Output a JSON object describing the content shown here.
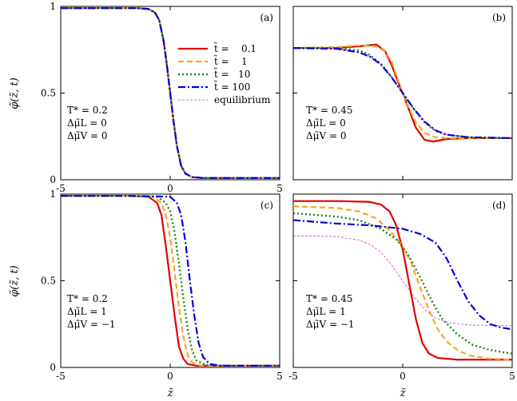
{
  "figure": {
    "ylabel": "φ̃(z̃, t)",
    "xlabel": "z̃",
    "legend": {
      "placement": "top-right of panel (a)",
      "entries": [
        {
          "name": "t̃ =    0.1",
          "color": "#e00000",
          "dash": "solid"
        },
        {
          "name": "t̃ =    1",
          "color": "#f5a623",
          "dash": "dashed"
        },
        {
          "name": "t̃ =   10",
          "color": "#1a8a1a",
          "dash": "dotted"
        },
        {
          "name": "t̃ = 100",
          "color": "#0000dd",
          "dash": "dashdot"
        },
        {
          "name": "equilibrium",
          "color": "#c040c0",
          "dash": "fine-dashed"
        }
      ]
    }
  },
  "chart_data": [
    {
      "panel": "(a)",
      "type": "line",
      "params": [
        "T* = 0.2",
        "Δμ̃L = 0",
        "Δμ̃V = 0"
      ],
      "xlim": [
        -5,
        5
      ],
      "ylim": [
        0,
        1
      ],
      "xticks": [
        "-5",
        "0",
        "5"
      ],
      "yticks": [
        "0",
        "0.5",
        "1"
      ],
      "xtick_values": [
        -5,
        0,
        5
      ],
      "ytick_values": [
        0,
        0.5,
        1
      ],
      "series": [
        {
          "name": "t̃ = 0.1",
          "x": [
            -5,
            -3,
            -1.5,
            -1,
            -0.7,
            -0.5,
            -0.3,
            -0.15,
            0,
            0.15,
            0.3,
            0.5,
            0.7,
            1,
            1.5,
            3,
            5
          ],
          "y": [
            0.99,
            0.99,
            0.99,
            0.985,
            0.965,
            0.92,
            0.8,
            0.66,
            0.5,
            0.34,
            0.2,
            0.08,
            0.035,
            0.015,
            0.01,
            0.01,
            0.01
          ]
        },
        {
          "name": "t̃ = 1",
          "x": [
            -5,
            -3,
            -1.5,
            -1,
            -0.7,
            -0.5,
            -0.3,
            -0.15,
            0,
            0.15,
            0.3,
            0.5,
            0.7,
            1,
            1.5,
            3,
            5
          ],
          "y": [
            0.99,
            0.99,
            0.99,
            0.985,
            0.965,
            0.92,
            0.8,
            0.66,
            0.5,
            0.34,
            0.2,
            0.08,
            0.035,
            0.015,
            0.01,
            0.01,
            0.01
          ]
        },
        {
          "name": "t̃ = 10",
          "x": [
            -5,
            -3,
            -1.5,
            -1,
            -0.7,
            -0.5,
            -0.3,
            -0.15,
            0,
            0.15,
            0.3,
            0.5,
            0.7,
            1,
            1.5,
            3,
            5
          ],
          "y": [
            0.99,
            0.99,
            0.99,
            0.985,
            0.965,
            0.92,
            0.8,
            0.66,
            0.5,
            0.34,
            0.2,
            0.08,
            0.035,
            0.015,
            0.01,
            0.01,
            0.01
          ]
        },
        {
          "name": "t̃ = 100",
          "x": [
            -5,
            -3,
            -1.5,
            -1,
            -0.7,
            -0.5,
            -0.3,
            -0.15,
            0,
            0.15,
            0.3,
            0.5,
            0.7,
            1,
            1.5,
            3,
            5
          ],
          "y": [
            0.99,
            0.99,
            0.99,
            0.985,
            0.965,
            0.92,
            0.8,
            0.66,
            0.5,
            0.34,
            0.2,
            0.08,
            0.035,
            0.015,
            0.01,
            0.01,
            0.01
          ]
        },
        {
          "name": "equilibrium",
          "x": [
            -5,
            -3,
            -1.5,
            -1,
            -0.7,
            -0.5,
            -0.3,
            -0.15,
            0,
            0.15,
            0.3,
            0.5,
            0.7,
            1,
            1.5,
            3,
            5
          ],
          "y": [
            0.99,
            0.99,
            0.99,
            0.985,
            0.965,
            0.92,
            0.8,
            0.66,
            0.5,
            0.34,
            0.2,
            0.08,
            0.035,
            0.015,
            0.01,
            0.01,
            0.01
          ]
        }
      ]
    },
    {
      "panel": "(b)",
      "type": "line",
      "params": [
        "T* = 0.45",
        "Δμ̃L = 0",
        "Δμ̃V = 0"
      ],
      "xlim": [
        -5,
        5
      ],
      "ylim": [
        0,
        1
      ],
      "xticks": [],
      "yticks": [],
      "xtick_values": [
        -5,
        0,
        5
      ],
      "ytick_values": [
        0,
        0.5,
        1
      ],
      "series": [
        {
          "name": "t̃ = 0.1",
          "x": [
            -5,
            -3,
            -2,
            -1.2,
            -0.8,
            -0.5,
            -0.2,
            0,
            0.3,
            0.6,
            1,
            1.4,
            2,
            3,
            5
          ],
          "y": [
            0.76,
            0.76,
            0.77,
            0.78,
            0.74,
            0.66,
            0.56,
            0.5,
            0.4,
            0.3,
            0.23,
            0.22,
            0.235,
            0.24,
            0.24
          ]
        },
        {
          "name": "t̃ = 1",
          "x": [
            -5,
            -3,
            -2,
            -1.2,
            -0.8,
            -0.5,
            -0.2,
            0,
            0.3,
            0.6,
            1,
            1.5,
            2,
            3,
            5
          ],
          "y": [
            0.76,
            0.765,
            0.775,
            0.77,
            0.74,
            0.68,
            0.57,
            0.5,
            0.41,
            0.33,
            0.27,
            0.245,
            0.24,
            0.24,
            0.24
          ]
        },
        {
          "name": "t̃ = 10",
          "x": [
            -5,
            -3,
            -2,
            -1.5,
            -1,
            -0.5,
            0,
            0.5,
            1,
            1.5,
            2,
            3,
            5
          ],
          "y": [
            0.76,
            0.76,
            0.745,
            0.72,
            0.67,
            0.59,
            0.5,
            0.41,
            0.33,
            0.28,
            0.26,
            0.245,
            0.24
          ]
        },
        {
          "name": "t̃ = 100",
          "x": [
            -5,
            -3,
            -2,
            -1.5,
            -1,
            -0.5,
            0,
            0.5,
            1,
            1.5,
            2,
            3,
            5
          ],
          "y": [
            0.76,
            0.755,
            0.735,
            0.71,
            0.665,
            0.59,
            0.5,
            0.41,
            0.335,
            0.285,
            0.26,
            0.245,
            0.24
          ]
        },
        {
          "name": "equilibrium",
          "x": [
            -5,
            -3,
            -2,
            -1.5,
            -1,
            -0.5,
            0,
            0.5,
            1,
            1.5,
            2,
            3,
            5
          ],
          "y": [
            0.76,
            0.755,
            0.735,
            0.71,
            0.665,
            0.59,
            0.5,
            0.41,
            0.335,
            0.285,
            0.26,
            0.245,
            0.24
          ]
        }
      ]
    },
    {
      "panel": "(c)",
      "type": "line",
      "params": [
        "T* = 0.2",
        "Δμ̃L =   1",
        "Δμ̃V = −1"
      ],
      "xlim": [
        -5,
        5
      ],
      "ylim": [
        0,
        1
      ],
      "xticks": [
        "-5",
        "0",
        "5"
      ],
      "yticks": [
        "0",
        "0.5",
        "1"
      ],
      "xtick_values": [
        -5,
        0,
        5
      ],
      "ytick_values": [
        0,
        0.5,
        1
      ],
      "series": [
        {
          "name": "t̃ = 0.1",
          "x": [
            -5,
            -2,
            -1,
            -0.6,
            -0.4,
            -0.2,
            0,
            0.2,
            0.4,
            0.6,
            0.8,
            1.2,
            2,
            5
          ],
          "y": [
            0.99,
            0.99,
            0.985,
            0.95,
            0.88,
            0.7,
            0.5,
            0.3,
            0.12,
            0.05,
            0.02,
            0.01,
            0.01,
            0.01
          ]
        },
        {
          "name": "t̃ = 1",
          "x": [
            -5,
            -2,
            -0.8,
            -0.4,
            -0.2,
            0,
            0.2,
            0.4,
            0.6,
            0.8,
            1,
            1.4,
            2,
            5
          ],
          "y": [
            0.99,
            0.99,
            0.985,
            0.95,
            0.88,
            0.75,
            0.55,
            0.35,
            0.18,
            0.07,
            0.03,
            0.01,
            0.01,
            0.01
          ]
        },
        {
          "name": "t̃ = 10",
          "x": [
            -5,
            -2,
            -0.6,
            -0.2,
            0,
            0.2,
            0.4,
            0.6,
            0.8,
            1,
            1.2,
            1.6,
            2.2,
            5
          ],
          "y": [
            0.99,
            0.99,
            0.985,
            0.95,
            0.9,
            0.78,
            0.6,
            0.4,
            0.22,
            0.1,
            0.04,
            0.015,
            0.01,
            0.01
          ]
        },
        {
          "name": "t̃ = 100",
          "x": [
            -5,
            -2,
            0,
            0.3,
            0.5,
            0.7,
            0.9,
            1.1,
            1.3,
            1.5,
            1.8,
            2.3,
            3,
            5
          ],
          "y": [
            0.99,
            0.99,
            0.985,
            0.95,
            0.88,
            0.72,
            0.5,
            0.3,
            0.14,
            0.06,
            0.02,
            0.01,
            0.01,
            0.01
          ]
        },
        {
          "name": "equilibrium",
          "x": [
            -5,
            -2,
            -1,
            -0.6,
            -0.4,
            -0.2,
            0,
            0.2,
            0.4,
            0.6,
            0.8,
            1.2,
            2,
            5
          ],
          "y": [
            0.99,
            0.99,
            0.985,
            0.95,
            0.88,
            0.7,
            0.5,
            0.3,
            0.12,
            0.05,
            0.02,
            0.01,
            0.01,
            0.01
          ]
        }
      ]
    },
    {
      "panel": "(d)",
      "type": "line",
      "params": [
        "T* = 0.45",
        "Δμ̃L =   1",
        "Δμ̃V = −1"
      ],
      "xlim": [
        -5,
        5
      ],
      "ylim": [
        0,
        1
      ],
      "xticks": [
        "-5",
        "0",
        "5"
      ],
      "yticks": [],
      "xtick_values": [
        -5,
        0,
        5
      ],
      "ytick_values": [
        0,
        0.5,
        1
      ],
      "series": [
        {
          "name": "t̃ = 0.1",
          "x": [
            -5,
            -3,
            -1.5,
            -1,
            -0.6,
            -0.3,
            0,
            0.3,
            0.6,
            0.9,
            1.2,
            1.6,
            2.5,
            5
          ],
          "y": [
            0.96,
            0.96,
            0.955,
            0.94,
            0.9,
            0.82,
            0.68,
            0.48,
            0.28,
            0.14,
            0.08,
            0.055,
            0.045,
            0.045
          ]
        },
        {
          "name": "t̃ = 1",
          "x": [
            -5,
            -3,
            -2,
            -1.2,
            -0.6,
            0,
            0.4,
            0.8,
            1.2,
            1.6,
            2,
            2.5,
            3,
            4,
            5
          ],
          "y": [
            0.93,
            0.92,
            0.9,
            0.86,
            0.79,
            0.7,
            0.6,
            0.46,
            0.33,
            0.22,
            0.15,
            0.1,
            0.07,
            0.05,
            0.045
          ]
        },
        {
          "name": "t̃ = 10",
          "x": [
            -5,
            -3,
            -2,
            -1,
            -0.3,
            0.3,
            0.8,
            1.3,
            1.8,
            2.5,
            3.2,
            4,
            5
          ],
          "y": [
            0.89,
            0.87,
            0.85,
            0.8,
            0.74,
            0.64,
            0.52,
            0.39,
            0.28,
            0.19,
            0.13,
            0.1,
            0.08
          ]
        },
        {
          "name": "t̃ = 100",
          "x": [
            -5,
            -3,
            -1.5,
            0,
            0.8,
            1.5,
            2,
            2.5,
            3,
            3.5,
            4,
            4.5,
            5
          ],
          "y": [
            0.85,
            0.83,
            0.82,
            0.8,
            0.77,
            0.72,
            0.63,
            0.5,
            0.38,
            0.3,
            0.25,
            0.23,
            0.22
          ]
        },
        {
          "name": "equilibrium",
          "x": [
            -5,
            -3,
            -2,
            -1.5,
            -1,
            -0.5,
            0,
            0.5,
            1,
            1.5,
            2,
            3,
            5
          ],
          "y": [
            0.76,
            0.755,
            0.735,
            0.71,
            0.665,
            0.59,
            0.5,
            0.41,
            0.335,
            0.285,
            0.26,
            0.245,
            0.24
          ]
        }
      ]
    }
  ]
}
